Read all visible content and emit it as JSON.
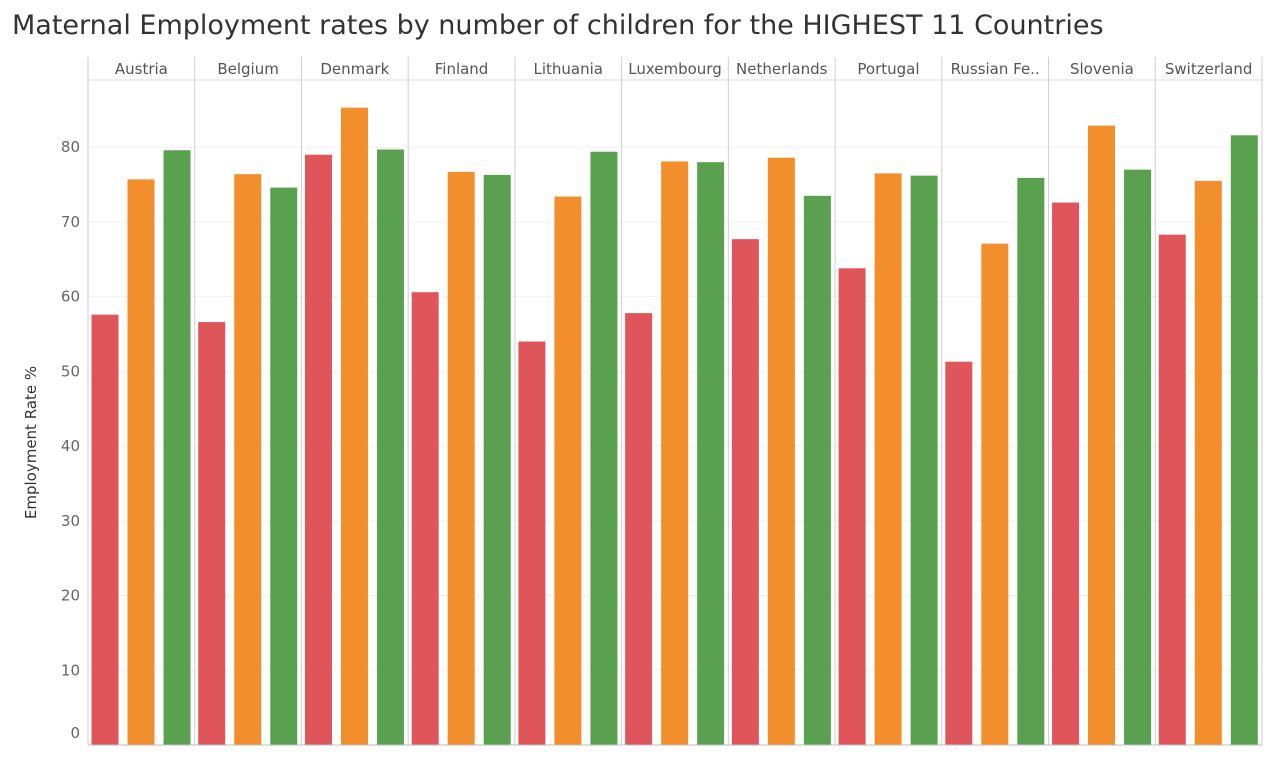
{
  "chart_data": {
    "type": "bar",
    "title": "Maternal Employment rates by number of children for the HIGHEST 11 Countries",
    "ylabel": "Employment Rate %",
    "xlabel": "",
    "ylim": [
      0,
      89
    ],
    "yticks": [
      0,
      10,
      20,
      30,
      40,
      50,
      60,
      70,
      80
    ],
    "grid": true,
    "categories": [
      "Austria",
      "Belgium",
      "Denmark",
      "Finland",
      "Lithuania",
      "Luxembourg",
      "Netherlands",
      "Portugal",
      "Russian Fe..",
      "Slovenia",
      "Switzerland"
    ],
    "colors": [
      "#e0555a",
      "#f28e2b",
      "#59a14f"
    ],
    "values": [
      [
        57.6,
        75.7,
        79.6
      ],
      [
        56.6,
        76.4,
        74.6
      ],
      [
        79.0,
        85.3,
        79.7
      ],
      [
        60.6,
        76.7,
        76.3
      ],
      [
        54.0,
        73.4,
        79.4
      ],
      [
        57.8,
        78.1,
        78.0
      ],
      [
        67.7,
        78.6,
        73.5
      ],
      [
        63.8,
        76.5,
        76.2
      ],
      [
        51.3,
        67.1,
        75.9
      ],
      [
        72.6,
        82.9,
        77.0
      ],
      [
        68.3,
        75.5,
        81.6
      ]
    ]
  }
}
